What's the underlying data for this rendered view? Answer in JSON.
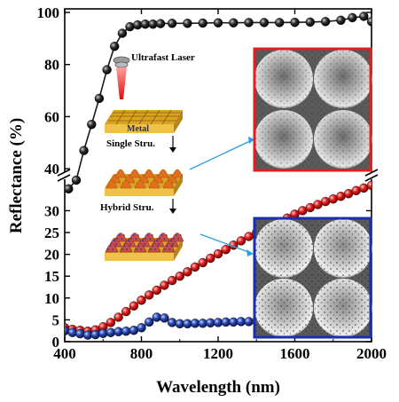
{
  "chart_data": {
    "type": "scatter",
    "xlabel": "Wavelength (nm)",
    "ylabel": "Reflectance (%)",
    "xlim": [
      400,
      2000
    ],
    "x_ticks": [
      "400",
      "800",
      "1200",
      "1600",
      "2000"
    ],
    "y_axis_broken": true,
    "y_lower_range": [
      0,
      37
    ],
    "y_upper_range": [
      38,
      100
    ],
    "y_ticks_lower": [
      "0",
      "5",
      "10",
      "15",
      "20",
      "25",
      "30"
    ],
    "y_ticks_upper": [
      "40",
      "60",
      "80",
      "100"
    ],
    "series": [
      {
        "color": "#1a1a1a",
        "x": [
          420,
          460,
          500,
          540,
          580,
          620,
          660,
          700,
          740,
          780,
          820,
          860,
          900,
          960,
          1040,
          1120,
          1200,
          1280,
          1360,
          1440,
          1520,
          1600,
          1680,
          1760,
          1840,
          1900,
          1960,
          2000
        ],
        "y": [
          35,
          37,
          47,
          57,
          67,
          78,
          87,
          92,
          94.5,
          95.2,
          95.5,
          95.5,
          95.7,
          95.8,
          95.8,
          95.9,
          96,
          96,
          96.1,
          96.1,
          96.1,
          96.2,
          96.3,
          96.5,
          97,
          98,
          98.5,
          96.5
        ]
      },
      {
        "color": "#e02020",
        "x": [
          400,
          440,
          480,
          520,
          560,
          600,
          640,
          680,
          720,
          760,
          800,
          840,
          880,
          920,
          960,
          1000,
          1040,
          1080,
          1120,
          1160,
          1200,
          1240,
          1280,
          1320,
          1360,
          1400,
          1440,
          1480,
          1520,
          1560,
          1600,
          1640,
          1680,
          1720,
          1760,
          1800,
          1840,
          1880,
          1920,
          1960,
          2000
        ],
        "y": [
          3.2,
          2.8,
          2.6,
          2.4,
          2.7,
          3.4,
          4.4,
          5.6,
          6.9,
          8.2,
          9.5,
          10.7,
          11.8,
          12.9,
          14,
          15,
          16,
          17.1,
          18.1,
          19.1,
          20.1,
          21.1,
          22.1,
          23.1,
          24.1,
          25,
          25.8,
          26.6,
          27.5,
          28.3,
          29.2,
          30,
          30.7,
          31.4,
          32.1,
          32.7,
          33.3,
          33.9,
          34.6,
          35.2,
          35.8
        ]
      },
      {
        "color": "#1f3f9a",
        "x": [
          400,
          440,
          480,
          520,
          560,
          600,
          640,
          680,
          720,
          760,
          800,
          840,
          880,
          920,
          960,
          1000,
          1040,
          1080,
          1120,
          1160,
          1200,
          1240,
          1280,
          1320,
          1360,
          1400,
          1440,
          1480,
          1520,
          1560,
          1600,
          1640,
          1680,
          1720,
          1760,
          1800,
          1840,
          1880,
          1920,
          1960,
          2000
        ],
        "y": [
          2.5,
          2.1,
          1.8,
          1.5,
          1.6,
          1.9,
          2.1,
          2.3,
          2.4,
          2.6,
          3.2,
          4.5,
          5.6,
          5.4,
          4.4,
          4.1,
          4.1,
          4.2,
          4.2,
          4.3,
          4.4,
          4.5,
          4.5,
          4.6,
          4.6,
          4.7,
          4.7,
          4.7,
          4.8,
          4.8,
          4.8,
          4.9,
          4.9,
          5,
          5.1,
          5.4,
          5.8,
          5.6,
          5,
          4.5,
          4.2
        ]
      }
    ],
    "grid": false
  },
  "inset": {
    "laser_label": "Ultrafast Laser",
    "metal_label": "Metal",
    "single_label": "Single Stru.",
    "hybrid_label": "Hybrid Stru.",
    "red_frame_color": "#e02020",
    "blue_frame_color": "#1a2fb0"
  }
}
